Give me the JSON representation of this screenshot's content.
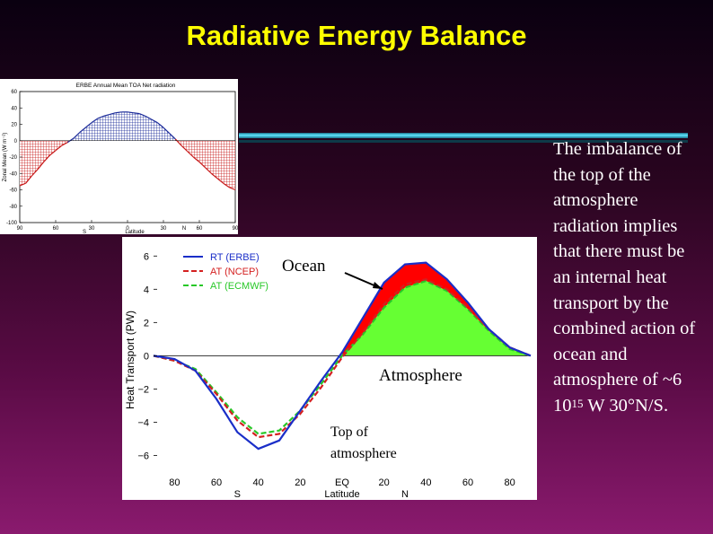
{
  "slide": {
    "title": "Radiative Energy Balance",
    "side_text_1": "The imbalance of the top of the atmosphere radiation implies that there must be an internal heat transport by the combined action of ocean and atmosphere of ~6 10",
    "side_text_exp": "15",
    "side_text_2": " W 30°N/S.",
    "colors": {
      "title": "#ffff00",
      "accent_bar": "#5fe6ff"
    }
  },
  "chart_data": [
    {
      "type": "area",
      "title": "ERBE Annual Mean TOA Net radiation",
      "ylabel": "Zonal Mean (W m⁻²)",
      "xlabel": "Latitude",
      "ylim": [
        -100,
        60
      ],
      "y_ticks": [
        "60",
        "40",
        "20",
        "0",
        "-20",
        "-40",
        "-60",
        "-80",
        "-100"
      ],
      "y_tick_values": [
        60,
        40,
        20,
        0,
        -20,
        -40,
        -60,
        -80,
        -100
      ],
      "x_ticks": [
        "90",
        "60",
        "30",
        "0",
        "30",
        "60",
        "90"
      ],
      "x_tick_values": [
        -90,
        -60,
        -30,
        0,
        30,
        60,
        90
      ],
      "hemisphere_labels": [
        "S",
        "N"
      ],
      "x": [
        -90,
        -85,
        -80,
        -75,
        -70,
        -65,
        -60,
        -55,
        -50,
        -45,
        -40,
        -35,
        -30,
        -25,
        -20,
        -15,
        -10,
        -5,
        0,
        5,
        10,
        15,
        20,
        25,
        30,
        35,
        40,
        45,
        50,
        55,
        60,
        65,
        70,
        75,
        80,
        85,
        90
      ],
      "values": [
        -55,
        -52,
        -43,
        -35,
        -26,
        -18,
        -12,
        -6,
        -2,
        3,
        10,
        16,
        22,
        27,
        30,
        32,
        34,
        35,
        35,
        34,
        33,
        30,
        26,
        22,
        16,
        9,
        2,
        -6,
        -13,
        -20,
        -26,
        -33,
        -40,
        -46,
        -52,
        -57,
        -60
      ],
      "colors": {
        "positive": "#1a2a99",
        "negative": "#c81a1a"
      }
    },
    {
      "type": "line",
      "title": "",
      "ylabel": "Heat Transport (PW)",
      "xlabel": "Latitude",
      "ylim": [
        -7,
        6.5
      ],
      "y_ticks": [
        "6",
        "4",
        "2",
        "0",
        "−2",
        "−4",
        "−6"
      ],
      "y_tick_values": [
        6,
        4,
        2,
        0,
        -2,
        -4,
        -6
      ],
      "x_ticks": [
        "80",
        "60",
        "40",
        "20",
        "EQ",
        "20",
        "40",
        "60",
        "80"
      ],
      "x_tick_values": [
        -80,
        -60,
        -40,
        -20,
        0,
        20,
        40,
        60,
        80
      ],
      "hemisphere_labels": [
        "S",
        "N"
      ],
      "x": [
        -90,
        -80,
        -70,
        -60,
        -50,
        -40,
        -30,
        -20,
        -10,
        0,
        10,
        20,
        30,
        40,
        50,
        60,
        70,
        80,
        90
      ],
      "series": [
        {
          "name": "RT (ERBE)",
          "style": "solid",
          "color": "#1a2ec8",
          "values": [
            0,
            -0.2,
            -0.9,
            -2.6,
            -4.6,
            -5.6,
            -5.1,
            -3.3,
            -1.5,
            0.2,
            2.3,
            4.4,
            5.5,
            5.6,
            4.6,
            3.2,
            1.6,
            0.5,
            0
          ]
        },
        {
          "name": "AT (NCEP)",
          "style": "dashed",
          "color": "#d42020",
          "values": [
            0,
            -0.3,
            -0.9,
            -2.3,
            -3.9,
            -4.9,
            -4.7,
            -3.5,
            -1.9,
            -0.1,
            1.4,
            3.1,
            4.3,
            4.6,
            4.0,
            2.9,
            1.6,
            0.5,
            0
          ]
        },
        {
          "name": "AT (ECMWF)",
          "style": "dashed",
          "color": "#28c828",
          "values": [
            0,
            -0.3,
            -0.8,
            -2.2,
            -3.7,
            -4.7,
            -4.5,
            -3.3,
            -1.7,
            0,
            1.3,
            2.9,
            4.1,
            4.5,
            3.9,
            2.8,
            1.5,
            0.4,
            0
          ]
        }
      ],
      "annotations": [
        "Ocean",
        "Atmosphere",
        "Top of atmosphere"
      ],
      "fill_colors": {
        "ocean": "#ff0000",
        "atmosphere": "#66ff33"
      }
    }
  ]
}
